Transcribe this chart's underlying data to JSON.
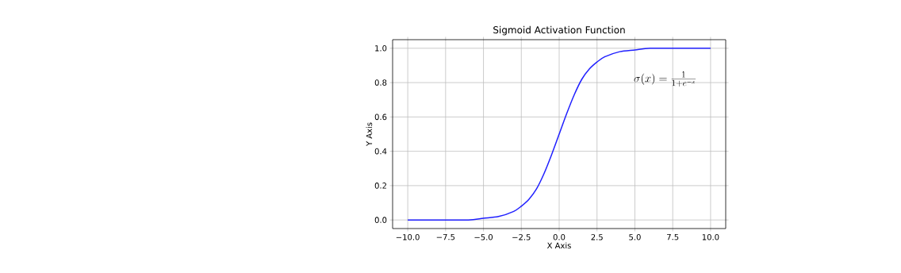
{
  "chart_data": {
    "type": "line",
    "title": "Sigmoid Activation Function",
    "xlabel": "X Axis",
    "ylabel": "Y Axis",
    "annotations": [
      "\\sigma(x) = \\frac{1}{1+e^{-x}}"
    ],
    "x": [
      -10,
      -8,
      -6,
      -5,
      -4,
      -3,
      -2.5,
      -2,
      -1.5,
      -1,
      -0.5,
      0,
      0.5,
      1,
      1.5,
      2,
      2.5,
      3,
      4,
      5,
      6,
      8,
      10
    ],
    "series": [
      {
        "color": "#2020ff",
        "values": [
          0.0,
          0.0,
          0.0,
          0.01,
          0.02,
          0.05,
          0.08,
          0.12,
          0.18,
          0.27,
          0.38,
          0.5,
          0.62,
          0.73,
          0.82,
          0.88,
          0.92,
          0.95,
          0.98,
          0.99,
          1.0,
          1.0,
          1.0
        ]
      }
    ],
    "xlim": [
      -11,
      11
    ],
    "ylim": [
      -0.05,
      1.05
    ],
    "xticks": [
      {
        "value": -10,
        "label": "−10.0"
      },
      {
        "value": -7.5,
        "label": "−7.5"
      },
      {
        "value": -5,
        "label": "−5.0"
      },
      {
        "value": -2.5,
        "label": "−2.5"
      },
      {
        "value": 0,
        "label": "0.0"
      },
      {
        "value": 2.5,
        "label": "2.5"
      },
      {
        "value": 5,
        "label": "5.0"
      },
      {
        "value": 7.5,
        "label": "7.5"
      },
      {
        "value": 10,
        "label": "10.0"
      }
    ],
    "yticks": [
      {
        "value": 0,
        "label": "0.0"
      },
      {
        "value": 0.2,
        "label": "0.2"
      },
      {
        "value": 0.4,
        "label": "0.4"
      },
      {
        "value": 0.6,
        "label": "0.6"
      },
      {
        "value": 0.8,
        "label": "0.8"
      },
      {
        "value": 1.0,
        "label": "1.0"
      }
    ],
    "grid": true,
    "marker": "none",
    "line_style": "solid"
  }
}
